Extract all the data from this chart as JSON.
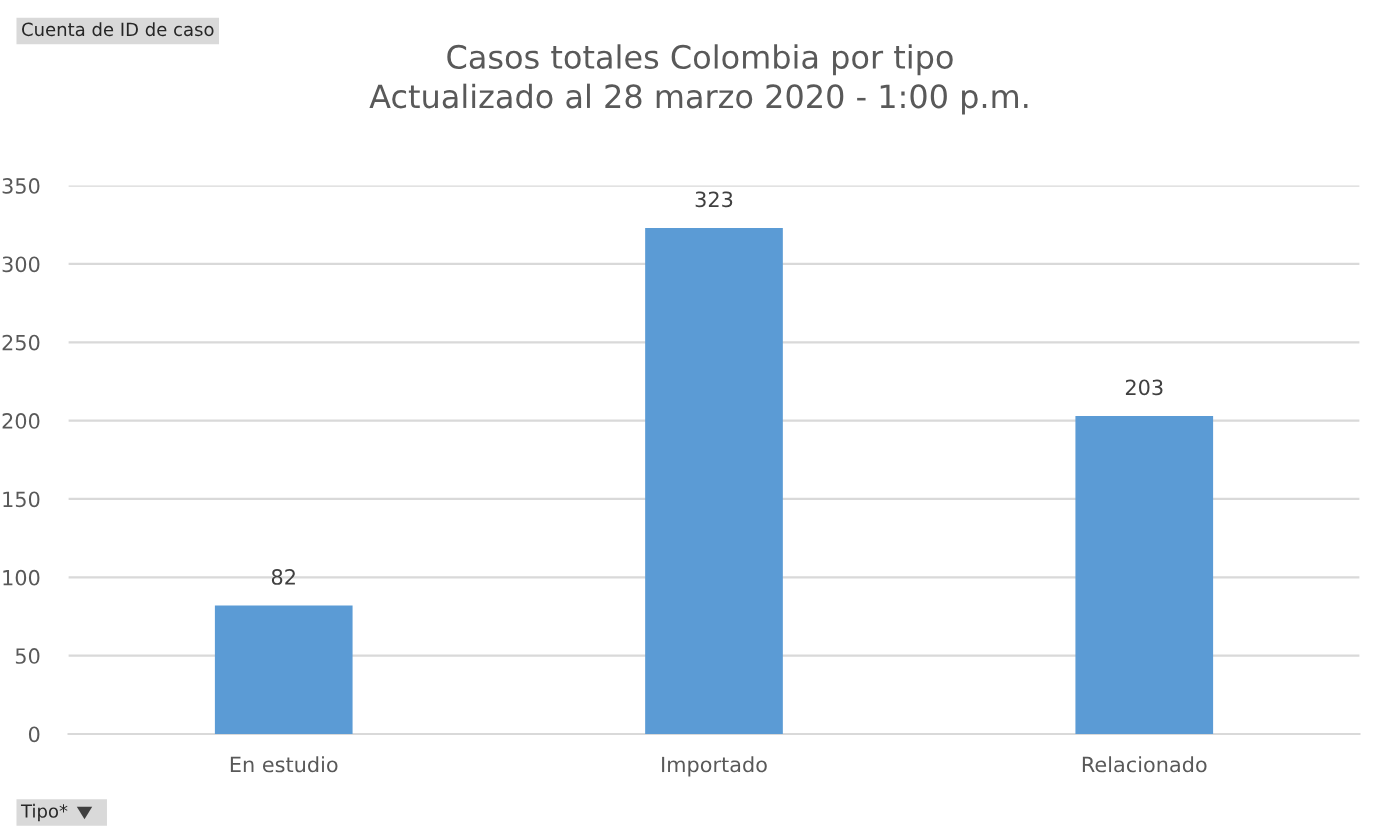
{
  "chart_data": {
    "type": "bar",
    "title": "Casos totales Colombia por tipo\nActualizado al 28 marzo 2020 - 1:00 p.m.",
    "categories": [
      "En estudio",
      "Importado",
      "Relacionado"
    ],
    "values": [
      82,
      323,
      203
    ],
    "color": "#5b9bd5",
    "ylim": [
      0,
      350
    ],
    "yticks": [
      0,
      50,
      100,
      150,
      200,
      250,
      300,
      350
    ],
    "grid": "y",
    "data_labels": true,
    "annotations": [
      "Cuenta de ID de caso",
      "Tipo*"
    ]
  }
}
